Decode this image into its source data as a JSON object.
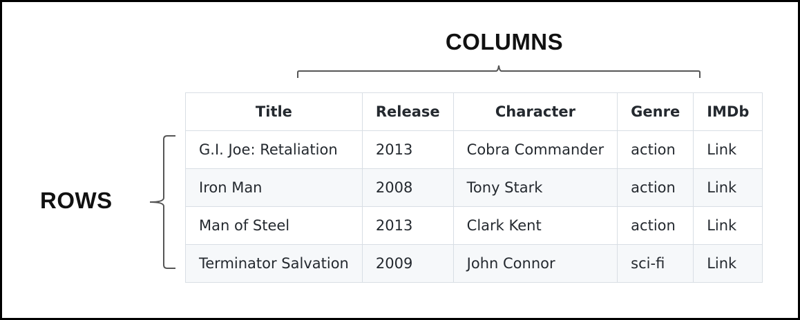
{
  "labels": {
    "columns": "COLUMNS",
    "rows": "ROWS"
  },
  "table": {
    "headers": [
      "Title",
      "Release",
      "Character",
      "Genre",
      "IMDb"
    ],
    "rows": [
      [
        "G.I. Joe: Retaliation",
        "2013",
        "Cobra Commander",
        "action",
        "Link"
      ],
      [
        "Iron Man",
        "2008",
        "Tony Stark",
        "action",
        "Link"
      ],
      [
        "Man of Steel",
        "2013",
        "Clark Kent",
        "action",
        "Link"
      ],
      [
        "Terminator Salvation",
        "2009",
        "John Connor",
        "sci-fi",
        "Link"
      ]
    ]
  }
}
